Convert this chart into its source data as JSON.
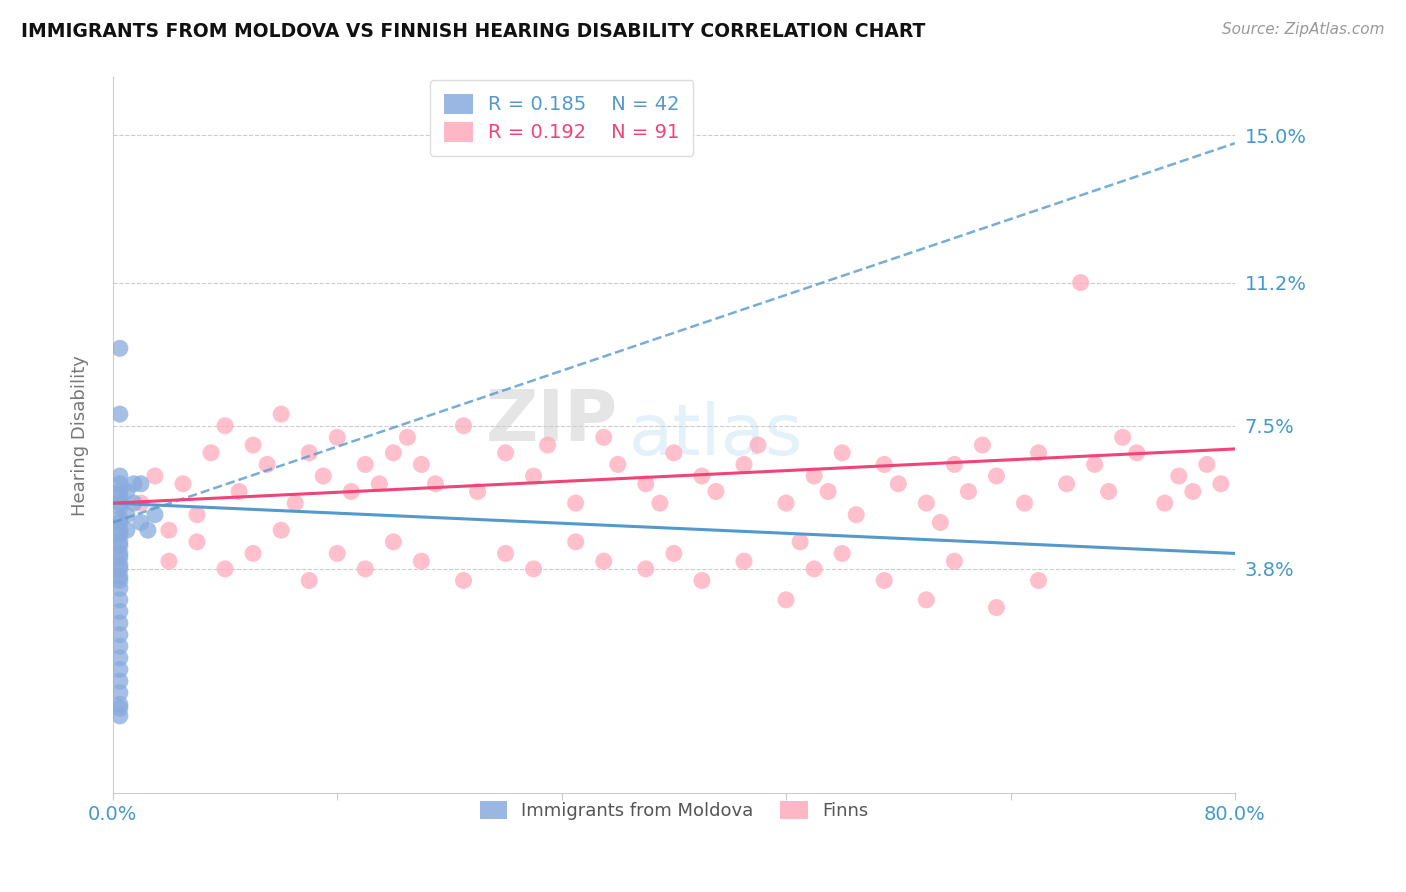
{
  "title": "IMMIGRANTS FROM MOLDOVA VS FINNISH HEARING DISABILITY CORRELATION CHART",
  "source": "Source: ZipAtlas.com",
  "ylabel": "Hearing Disability",
  "legend_r1": "R = 0.185",
  "legend_n1": "N = 42",
  "legend_r2": "R = 0.192",
  "legend_n2": "N = 91",
  "legend_label1": "Immigrants from Moldova",
  "legend_label2": "Finns",
  "blue_color": "#88AADD",
  "pink_color": "#FFAABB",
  "blue_line_color": "#5599CC",
  "pink_line_color": "#EE4477",
  "title_color": "#111111",
  "axis_label_color": "#4499CC",
  "xlim": [
    0.0,
    0.8
  ],
  "ylim": [
    -0.02,
    0.165
  ],
  "ytick_vals": [
    0.038,
    0.075,
    0.112,
    0.15
  ],
  "ytick_labels": [
    "3.8%",
    "7.5%",
    "11.2%",
    "15.0%"
  ],
  "blue_line_x0": 0.0,
  "blue_line_x1": 0.8,
  "blue_line_y0": 0.05,
  "blue_line_y1": 0.148,
  "pink_line_x0": 0.0,
  "pink_line_x1": 0.8,
  "pink_line_y0": 0.055,
  "pink_line_y1": 0.069,
  "blue_solid_line_y0": 0.055,
  "blue_solid_line_y1": 0.042,
  "watermark_text": "ZIPatlas",
  "blue_dots_x": [
    0.005,
    0.005,
    0.005,
    0.005,
    0.005,
    0.005,
    0.005,
    0.005,
    0.005,
    0.005,
    0.005,
    0.005,
    0.005,
    0.005,
    0.005,
    0.005,
    0.005,
    0.005,
    0.005,
    0.005,
    0.005,
    0.005,
    0.005,
    0.005,
    0.005,
    0.005,
    0.005,
    0.005,
    0.005,
    0.005,
    0.01,
    0.01,
    0.01,
    0.015,
    0.015,
    0.02,
    0.02,
    0.025,
    0.03,
    0.005,
    0.005,
    0.005
  ],
  "blue_dots_y": [
    0.06,
    0.057,
    0.054,
    0.051,
    0.048,
    0.045,
    0.042,
    0.039,
    0.036,
    0.033,
    0.03,
    0.027,
    0.024,
    0.021,
    0.018,
    0.015,
    0.012,
    0.009,
    0.006,
    0.003,
    0.0,
    0.062,
    0.058,
    0.055,
    0.05,
    0.047,
    0.044,
    0.041,
    0.038,
    0.035,
    0.058,
    0.052,
    0.048,
    0.06,
    0.055,
    0.06,
    0.05,
    0.048,
    0.052,
    0.095,
    0.078,
    0.002
  ],
  "pink_dots_x": [
    0.02,
    0.03,
    0.04,
    0.05,
    0.06,
    0.07,
    0.08,
    0.09,
    0.1,
    0.11,
    0.12,
    0.13,
    0.14,
    0.15,
    0.16,
    0.17,
    0.18,
    0.19,
    0.2,
    0.21,
    0.22,
    0.23,
    0.25,
    0.26,
    0.28,
    0.3,
    0.31,
    0.33,
    0.35,
    0.36,
    0.38,
    0.39,
    0.4,
    0.42,
    0.43,
    0.45,
    0.46,
    0.48,
    0.49,
    0.5,
    0.51,
    0.52,
    0.53,
    0.55,
    0.56,
    0.58,
    0.59,
    0.6,
    0.61,
    0.62,
    0.63,
    0.65,
    0.66,
    0.68,
    0.7,
    0.71,
    0.72,
    0.73,
    0.75,
    0.76,
    0.77,
    0.78,
    0.79,
    0.04,
    0.06,
    0.08,
    0.1,
    0.12,
    0.14,
    0.16,
    0.18,
    0.2,
    0.22,
    0.25,
    0.28,
    0.3,
    0.33,
    0.35,
    0.38,
    0.4,
    0.42,
    0.45,
    0.48,
    0.5,
    0.52,
    0.55,
    0.58,
    0.6,
    0.63,
    0.66,
    0.69
  ],
  "pink_dots_y": [
    0.055,
    0.062,
    0.048,
    0.06,
    0.052,
    0.068,
    0.075,
    0.058,
    0.07,
    0.065,
    0.078,
    0.055,
    0.068,
    0.062,
    0.072,
    0.058,
    0.065,
    0.06,
    0.068,
    0.072,
    0.065,
    0.06,
    0.075,
    0.058,
    0.068,
    0.062,
    0.07,
    0.055,
    0.072,
    0.065,
    0.06,
    0.055,
    0.068,
    0.062,
    0.058,
    0.065,
    0.07,
    0.055,
    0.045,
    0.062,
    0.058,
    0.068,
    0.052,
    0.065,
    0.06,
    0.055,
    0.05,
    0.065,
    0.058,
    0.07,
    0.062,
    0.055,
    0.068,
    0.06,
    0.065,
    0.058,
    0.072,
    0.068,
    0.055,
    0.062,
    0.058,
    0.065,
    0.06,
    0.04,
    0.045,
    0.038,
    0.042,
    0.048,
    0.035,
    0.042,
    0.038,
    0.045,
    0.04,
    0.035,
    0.042,
    0.038,
    0.045,
    0.04,
    0.038,
    0.042,
    0.035,
    0.04,
    0.03,
    0.038,
    0.042,
    0.035,
    0.03,
    0.04,
    0.028,
    0.035,
    0.112
  ]
}
